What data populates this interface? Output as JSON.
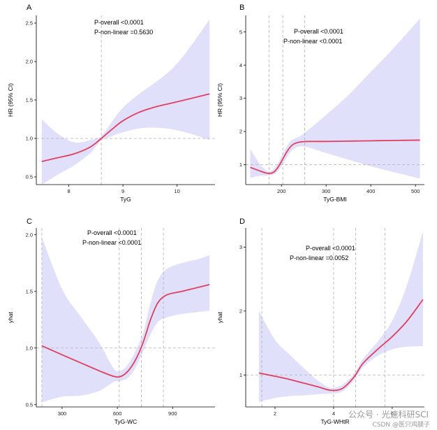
{
  "chart_data": [
    {
      "panel": "A",
      "type": "line",
      "xlabel": "TyG",
      "ylabel": "HR (95% CI)",
      "xlim": [
        7.4,
        10.7
      ],
      "ylim": [
        0.4,
        2.6
      ],
      "xticks": [
        8,
        9,
        10
      ],
      "yticks": [
        0.5,
        1.0,
        1.5,
        2.0,
        2.5
      ],
      "xtick_labels": [
        "8",
        "9",
        "10"
      ],
      "ytick_labels": [
        "0.5",
        "1.0",
        "1.5",
        "2.0",
        "2.5"
      ],
      "ref_y": 1.0,
      "knots_x": [
        8.6
      ],
      "annotations": [
        "P-overall <0.0001",
        "P-non-linear =0.5630"
      ],
      "x": [
        7.5,
        7.8,
        8.1,
        8.4,
        8.6,
        8.8,
        9.0,
        9.3,
        9.6,
        9.9,
        10.2,
        10.6
      ],
      "y": [
        0.7,
        0.75,
        0.8,
        0.89,
        1.0,
        1.12,
        1.23,
        1.34,
        1.41,
        1.46,
        1.51,
        1.58
      ],
      "lower": [
        0.4,
        0.53,
        0.65,
        0.81,
        0.97,
        1.03,
        1.08,
        1.13,
        1.14,
        1.12,
        1.07,
        0.98
      ],
      "upper": [
        1.25,
        1.06,
        0.95,
        0.98,
        1.03,
        1.22,
        1.4,
        1.58,
        1.73,
        1.9,
        2.15,
        2.55
      ]
    },
    {
      "panel": "B",
      "type": "line",
      "xlabel": "TyG-BMI",
      "ylabel": "HR (95% CI)",
      "xlim": [
        120,
        520
      ],
      "ylim": [
        0.4,
        5.5
      ],
      "xticks": [
        200,
        300,
        400,
        500
      ],
      "yticks": [
        1,
        2,
        3,
        4,
        5
      ],
      "xtick_labels": [
        "200",
        "300",
        "400",
        "500"
      ],
      "ytick_labels": [
        "1",
        "2",
        "3",
        "4",
        "5"
      ],
      "ref_y": 1.0,
      "knots_x": [
        172,
        203,
        252
      ],
      "annotations": [
        "P-overall <0.0001",
        "P-non-linear <0.0001"
      ],
      "x": [
        130,
        150,
        165,
        175,
        185,
        195,
        205,
        215,
        225,
        240,
        260,
        300,
        350,
        400,
        450,
        510
      ],
      "y": [
        0.92,
        0.82,
        0.75,
        0.74,
        0.8,
        0.98,
        1.22,
        1.45,
        1.6,
        1.68,
        1.7,
        1.7,
        1.71,
        1.72,
        1.73,
        1.74
      ],
      "lower": [
        0.6,
        0.66,
        0.67,
        0.68,
        0.72,
        0.85,
        1.05,
        1.28,
        1.45,
        1.55,
        1.52,
        1.35,
        1.15,
        0.95,
        0.78,
        0.58
      ],
      "upper": [
        1.48,
        1.05,
        0.84,
        0.8,
        0.9,
        1.12,
        1.38,
        1.62,
        1.76,
        1.85,
        2.05,
        2.5,
        3.1,
        3.8,
        4.5,
        5.4
      ]
    },
    {
      "panel": "C",
      "type": "line",
      "xlabel": "TyG-WC",
      "ylabel": "yhat",
      "xlim": [
        160,
        1130
      ],
      "ylim": [
        0.48,
        2.06
      ],
      "xticks": [
        300,
        600,
        900
      ],
      "yticks": [
        0.5,
        1.0,
        1.5,
        2.0
      ],
      "xtick_labels": [
        "300",
        "600",
        "900"
      ],
      "ytick_labels": [
        "0.5",
        "1.0",
        "1.5",
        "2.0"
      ],
      "ref_y": 1.0,
      "knots_x": [
        190,
        610,
        730,
        850
      ],
      "annotations": [
        "P-overall <0.0001",
        "P-non-linear <0.0001"
      ],
      "x": [
        190,
        300,
        400,
        500,
        580,
        620,
        660,
        700,
        740,
        780,
        820,
        870,
        950,
        1050,
        1100
      ],
      "y": [
        1.02,
        0.94,
        0.87,
        0.8,
        0.75,
        0.75,
        0.8,
        0.9,
        1.05,
        1.25,
        1.4,
        1.47,
        1.5,
        1.54,
        1.56
      ],
      "lower": [
        0.52,
        0.57,
        0.58,
        0.62,
        0.7,
        0.71,
        0.74,
        0.83,
        0.97,
        1.12,
        1.23,
        1.27,
        1.3,
        1.32,
        1.33
      ],
      "upper": [
        1.98,
        1.52,
        1.28,
        1.05,
        0.82,
        0.8,
        0.86,
        0.98,
        1.13,
        1.4,
        1.6,
        1.7,
        1.75,
        1.79,
        1.82
      ]
    },
    {
      "panel": "D",
      "type": "line",
      "xlabel": "TyG-WHtR",
      "ylabel": "yhat",
      "xlim": [
        1.0,
        7.1
      ],
      "ylim": [
        0.5,
        3.3
      ],
      "xticks": [
        2,
        4,
        6
      ],
      "yticks": [
        1,
        2,
        3
      ],
      "xtick_labels": [
        "2",
        "4",
        "6"
      ],
      "ytick_labels": [
        "1",
        "2",
        "3"
      ],
      "ref_y": 1.0,
      "knots_x": [
        1.55,
        4.0,
        4.75,
        5.75
      ],
      "annotations": [
        "P-overall <0.0001",
        "P-non-linear =0.0052"
      ],
      "x": [
        1.45,
        2.0,
        2.5,
        3.0,
        3.5,
        3.9,
        4.3,
        4.7,
        5.0,
        5.5,
        6.0,
        6.5,
        7.05
      ],
      "y": [
        1.03,
        0.98,
        0.93,
        0.87,
        0.81,
        0.76,
        0.79,
        0.97,
        1.18,
        1.4,
        1.6,
        1.84,
        2.18
      ],
      "lower": [
        0.58,
        0.64,
        0.67,
        0.68,
        0.7,
        0.71,
        0.74,
        0.92,
        1.12,
        1.3,
        1.4,
        1.44,
        1.45
      ],
      "upper": [
        2.0,
        1.55,
        1.32,
        1.1,
        0.9,
        0.8,
        0.85,
        1.02,
        1.25,
        1.52,
        1.85,
        2.4,
        3.25
      ]
    }
  ],
  "colors": {
    "line": "#e0405e",
    "band": "#e1e0fb",
    "ref": "#b0b0b0",
    "axis": "#000000"
  },
  "watermark": {
    "main": "公众号 · 光速科研SCI",
    "sub": "CSDN @医只鸡腿子"
  }
}
